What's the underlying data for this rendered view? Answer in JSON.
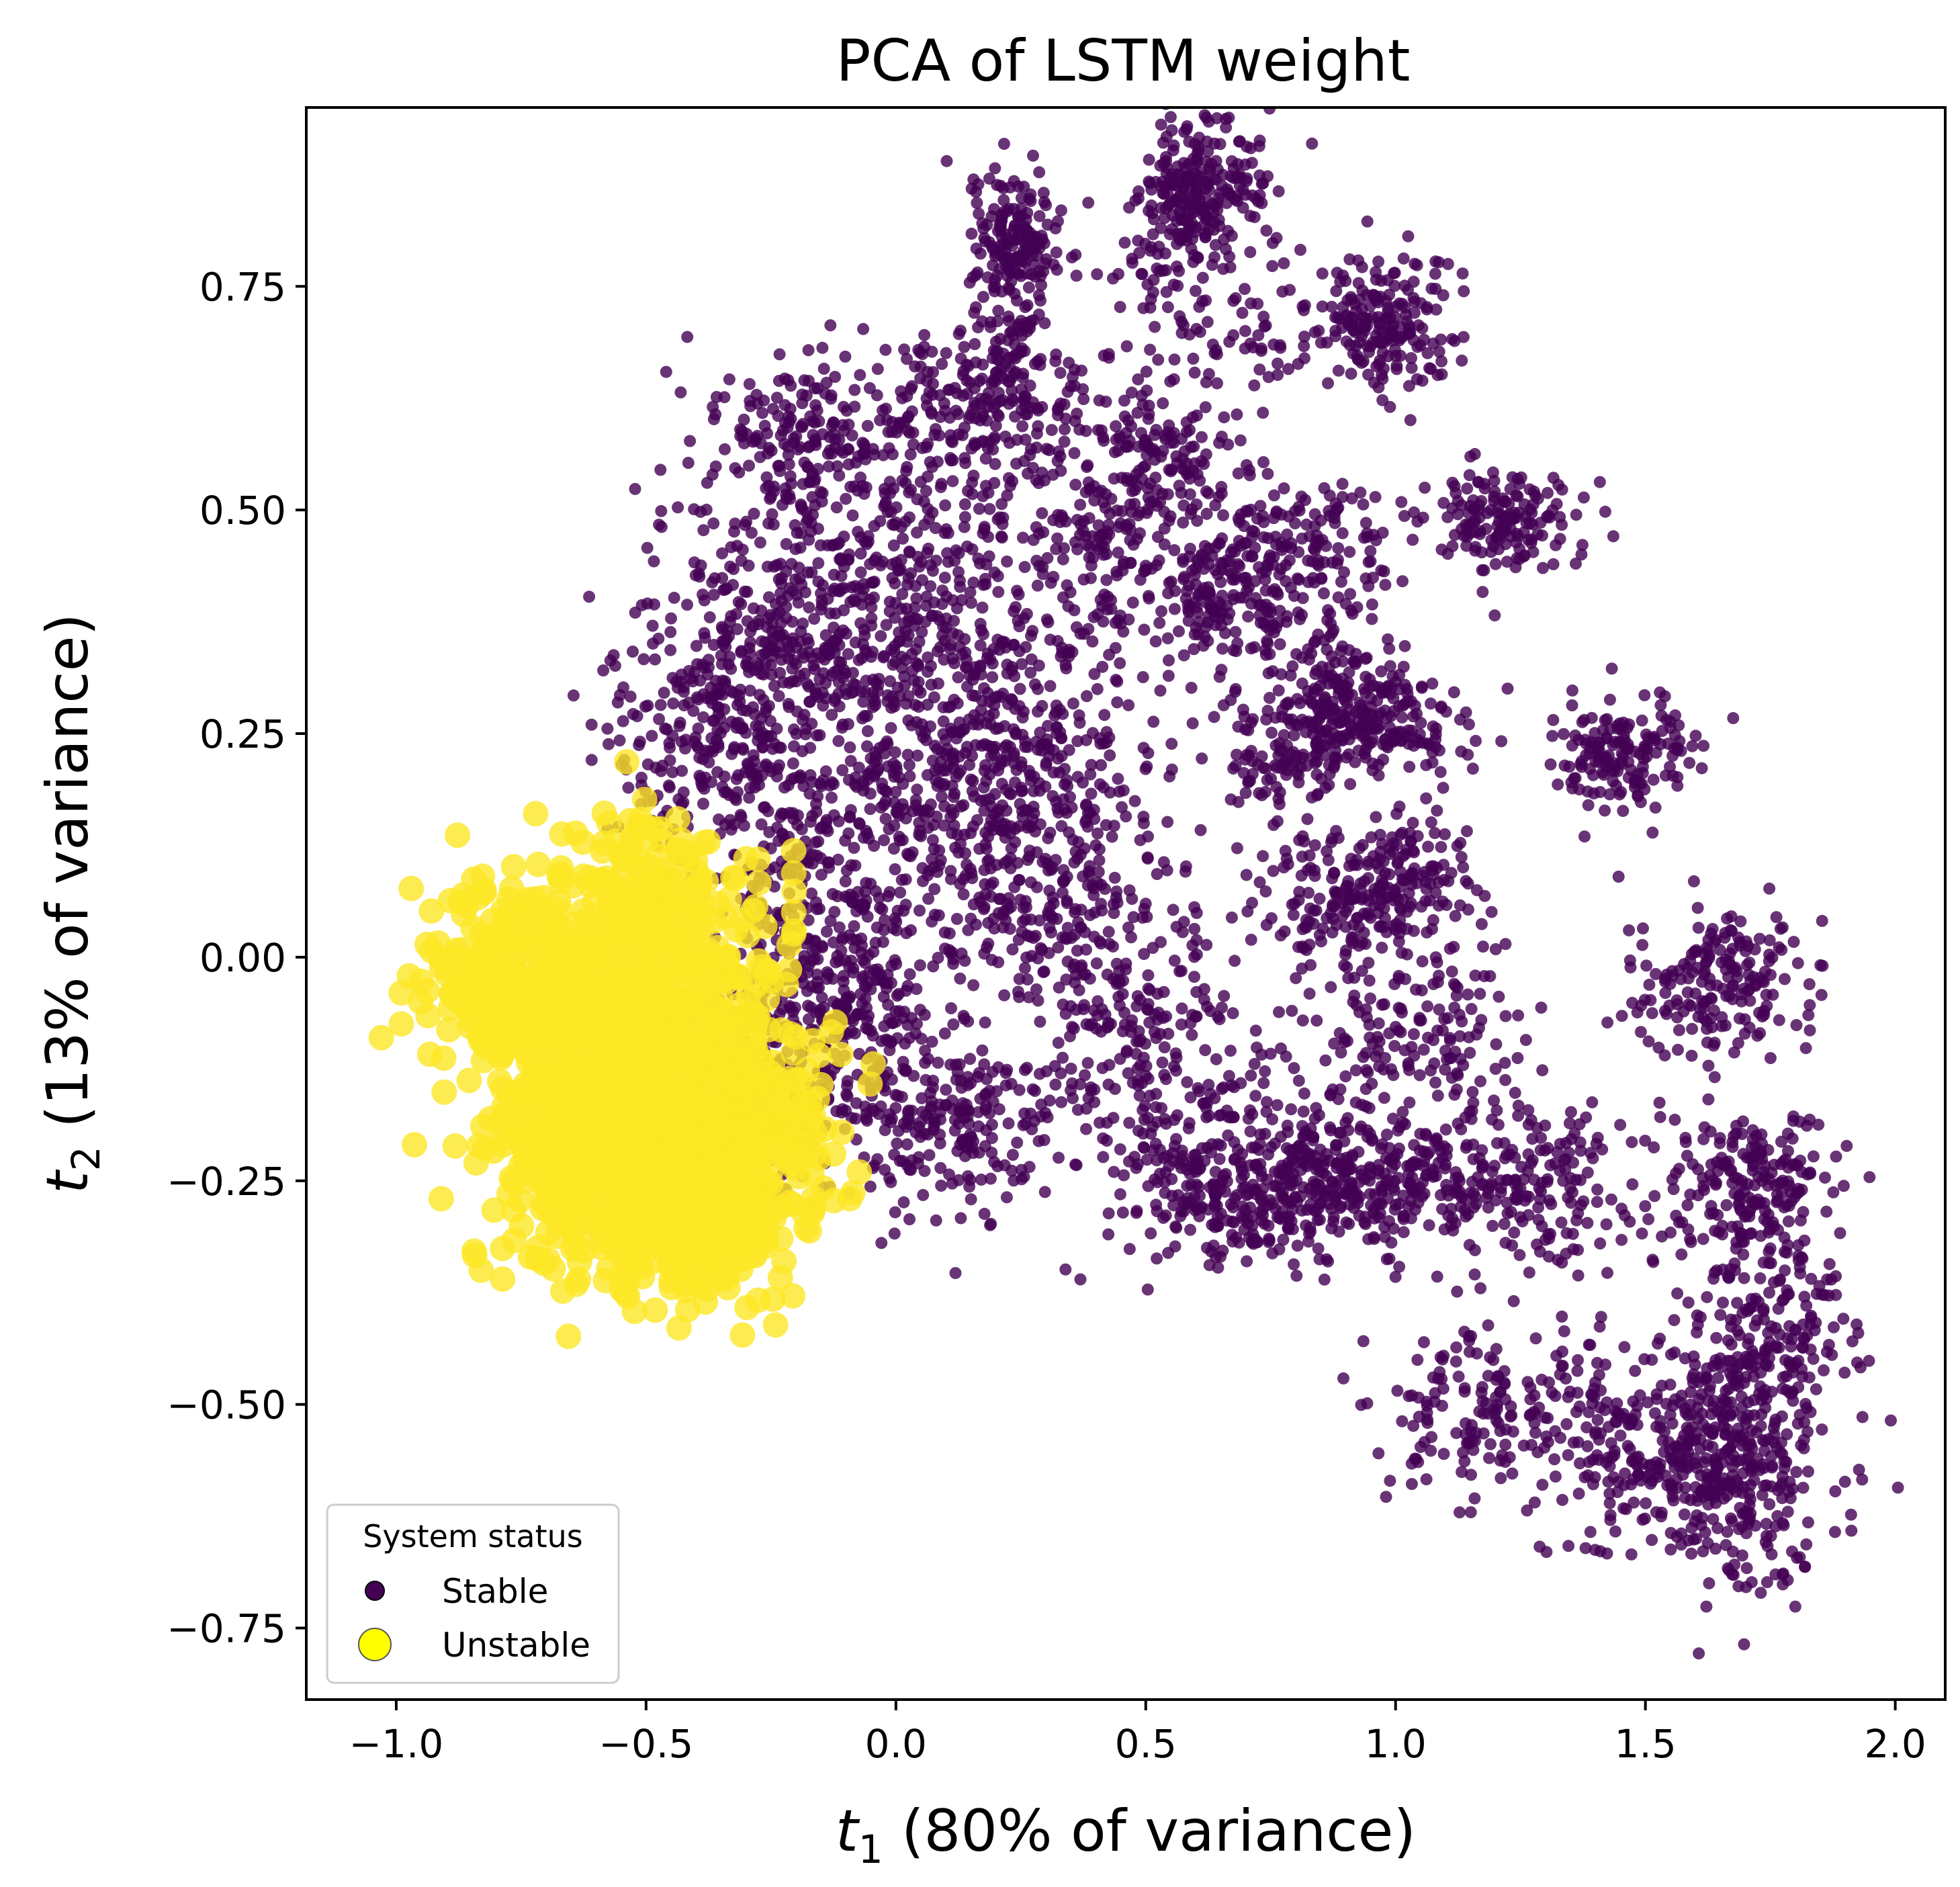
{
  "chart_data": {
    "type": "scatter",
    "title": "PCA of LSTM weight",
    "xlabel": {
      "var": "t",
      "sub": "1",
      "text": " (80% of variance)"
    },
    "ylabel": {
      "var": "t",
      "sub": "2",
      "text": " (13% of variance)"
    },
    "xlim": [
      -1.18,
      2.1
    ],
    "ylim": [
      -0.83,
      0.95
    ],
    "xticks": [
      -1.0,
      -0.5,
      0.0,
      0.5,
      1.0,
      1.5,
      2.0
    ],
    "xtick_labels": [
      "−1.0",
      "−0.5",
      "0.0",
      "0.5",
      "1.0",
      "1.5",
      "2.0"
    ],
    "yticks": [
      0.75,
      0.5,
      0.25,
      0.0,
      -0.25,
      -0.5,
      -0.75
    ],
    "ytick_labels": [
      "0.75",
      "0.50",
      "0.25",
      "0.00",
      "−0.25",
      "−0.50",
      "−0.75"
    ],
    "grid": false,
    "legend": {
      "title": "System status",
      "placement": "lower-left",
      "entries": [
        "Stable",
        "Unstable"
      ]
    },
    "series": [
      {
        "name": "Stable",
        "color": "#440154",
        "marker": "circle",
        "marker_size": "small",
        "alpha": 0.8,
        "clusters": [
          {
            "cx": 0.62,
            "cy": 0.86,
            "sx": 0.06,
            "sy": 0.04,
            "n": 220
          },
          {
            "cx": 0.55,
            "cy": 0.78,
            "sx": 0.06,
            "sy": 0.05,
            "n": 70
          },
          {
            "cx": 0.24,
            "cy": 0.8,
            "sx": 0.04,
            "sy": 0.04,
            "n": 160
          },
          {
            "cx": 0.22,
            "cy": 0.7,
            "sx": 0.04,
            "sy": 0.06,
            "n": 80
          },
          {
            "cx": 0.98,
            "cy": 0.71,
            "sx": 0.07,
            "sy": 0.04,
            "n": 200
          },
          {
            "cx": 0.7,
            "cy": 0.7,
            "sx": 0.1,
            "sy": 0.04,
            "n": 50
          },
          {
            "cx": -0.15,
            "cy": 0.58,
            "sx": 0.12,
            "sy": 0.05,
            "n": 230
          },
          {
            "cx": 0.2,
            "cy": 0.61,
            "sx": 0.1,
            "sy": 0.05,
            "n": 180
          },
          {
            "cx": 0.52,
            "cy": 0.55,
            "sx": 0.09,
            "sy": 0.06,
            "n": 190
          },
          {
            "cx": 0.38,
            "cy": 0.45,
            "sx": 0.07,
            "sy": 0.05,
            "n": 110
          },
          {
            "cx": 1.22,
            "cy": 0.49,
            "sx": 0.08,
            "sy": 0.03,
            "n": 160
          },
          {
            "cx": 0.8,
            "cy": 0.45,
            "sx": 0.1,
            "sy": 0.05,
            "n": 170
          },
          {
            "cx": 0.65,
            "cy": 0.4,
            "sx": 0.08,
            "sy": 0.05,
            "n": 160
          },
          {
            "cx": 0.05,
            "cy": 0.4,
            "sx": 0.14,
            "sy": 0.08,
            "n": 260
          },
          {
            "cx": -0.2,
            "cy": 0.38,
            "sx": 0.12,
            "sy": 0.07,
            "n": 250
          },
          {
            "cx": 0.9,
            "cy": 0.3,
            "sx": 0.06,
            "sy": 0.04,
            "n": 100
          },
          {
            "cx": 0.95,
            "cy": 0.26,
            "sx": 0.09,
            "sy": 0.03,
            "n": 180
          },
          {
            "cx": 0.78,
            "cy": 0.22,
            "sx": 0.08,
            "sy": 0.04,
            "n": 110
          },
          {
            "cx": 1.45,
            "cy": 0.23,
            "sx": 0.08,
            "sy": 0.03,
            "n": 160
          },
          {
            "cx": -0.35,
            "cy": 0.25,
            "sx": 0.12,
            "sy": 0.07,
            "n": 320
          },
          {
            "cx": 0.0,
            "cy": 0.2,
            "sx": 0.1,
            "sy": 0.1,
            "n": 270
          },
          {
            "cx": 0.2,
            "cy": 0.25,
            "sx": 0.08,
            "sy": 0.08,
            "n": 170
          },
          {
            "cx": 0.35,
            "cy": 0.2,
            "sx": 0.1,
            "sy": 0.07,
            "n": 130
          },
          {
            "cx": 0.25,
            "cy": 0.08,
            "sx": 0.1,
            "sy": 0.06,
            "n": 170
          },
          {
            "cx": 1.0,
            "cy": 0.08,
            "sx": 0.09,
            "sy": 0.04,
            "n": 190
          },
          {
            "cx": 0.85,
            "cy": 0.05,
            "sx": 0.07,
            "sy": 0.04,
            "n": 80
          },
          {
            "cx": 1.65,
            "cy": -0.03,
            "sx": 0.09,
            "sy": 0.04,
            "n": 190
          },
          {
            "cx": 0.45,
            "cy": 0.0,
            "sx": 0.1,
            "sy": 0.07,
            "n": 140
          },
          {
            "cx": -0.1,
            "cy": -0.05,
            "sx": 0.1,
            "sy": 0.08,
            "n": 270
          },
          {
            "cx": 1.05,
            "cy": -0.1,
            "sx": 0.1,
            "sy": 0.05,
            "n": 150
          },
          {
            "cx": 0.55,
            "cy": -0.15,
            "sx": 0.12,
            "sy": 0.06,
            "n": 180
          },
          {
            "cx": 0.1,
            "cy": -0.18,
            "sx": 0.14,
            "sy": 0.06,
            "n": 250
          },
          {
            "cx": 0.95,
            "cy": -0.25,
            "sx": 0.16,
            "sy": 0.04,
            "n": 380
          },
          {
            "cx": 0.7,
            "cy": -0.27,
            "sx": 0.12,
            "sy": 0.04,
            "n": 220
          },
          {
            "cx": 1.3,
            "cy": -0.25,
            "sx": 0.1,
            "sy": 0.05,
            "n": 130
          },
          {
            "cx": 1.7,
            "cy": -0.25,
            "sx": 0.1,
            "sy": 0.04,
            "n": 210
          },
          {
            "cx": 1.75,
            "cy": -0.43,
            "sx": 0.08,
            "sy": 0.05,
            "n": 190
          },
          {
            "cx": 1.2,
            "cy": -0.5,
            "sx": 0.12,
            "sy": 0.05,
            "n": 170
          },
          {
            "cx": 1.65,
            "cy": -0.55,
            "sx": 0.1,
            "sy": 0.05,
            "n": 310
          },
          {
            "cx": 1.45,
            "cy": -0.55,
            "sx": 0.1,
            "sy": 0.06,
            "n": 130
          },
          {
            "cx": 1.7,
            "cy": -0.66,
            "sx": 0.1,
            "sy": 0.04,
            "n": 60
          },
          {
            "cx": -0.25,
            "cy": -0.1,
            "sx": 0.1,
            "sy": 0.08,
            "n": 140
          },
          {
            "cx": -0.2,
            "cy": 0.08,
            "sx": 0.08,
            "sy": 0.07,
            "n": 120
          }
        ]
      },
      {
        "name": "Unstable",
        "color": "#fde725",
        "marker": "circle",
        "marker_size": "large",
        "alpha": 0.8,
        "clusters": [
          {
            "cx": -0.78,
            "cy": -0.03,
            "sx": 0.08,
            "sy": 0.06,
            "n": 260
          },
          {
            "cx": -0.55,
            "cy": -0.08,
            "sx": 0.1,
            "sy": 0.08,
            "n": 360
          },
          {
            "cx": -0.52,
            "cy": -0.22,
            "sx": 0.11,
            "sy": 0.07,
            "n": 380
          },
          {
            "cx": -0.4,
            "cy": -0.28,
            "sx": 0.09,
            "sy": 0.05,
            "n": 260
          },
          {
            "cx": -0.65,
            "cy": -0.2,
            "sx": 0.08,
            "sy": 0.07,
            "n": 220
          },
          {
            "cx": -0.35,
            "cy": -0.1,
            "sx": 0.09,
            "sy": 0.09,
            "n": 220
          },
          {
            "cx": -0.5,
            "cy": 0.05,
            "sx": 0.08,
            "sy": 0.06,
            "n": 170
          },
          {
            "cx": -0.25,
            "cy": -0.22,
            "sx": 0.07,
            "sy": 0.06,
            "n": 150
          }
        ],
        "outliers": [
          [
            -1.03,
            -0.09
          ],
          [
            -0.99,
            -0.04
          ],
          [
            -0.91,
            -0.27
          ],
          [
            -0.83,
            -0.35
          ],
          [
            -0.84,
            -0.23
          ],
          [
            -0.3,
            0.11
          ],
          [
            -0.56,
            0.13
          ]
        ]
      }
    ]
  }
}
